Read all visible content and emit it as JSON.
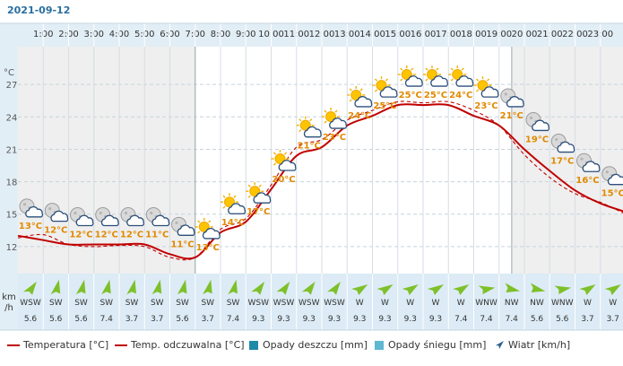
{
  "date": "2021-09-12",
  "colors": {
    "night_bg": "#efefef",
    "day_bg": "#ffffff",
    "header_bg": "#e2eef6",
    "wind_bg": "#dcebf5",
    "temp_line": "#c00000",
    "feels_line": "#c00000",
    "label_temp": "#e08a00",
    "wind_arrow": "#7ec02a",
    "rain": "#1f8aa8",
    "snow": "#5fb7d1",
    "wind_legend": "#2a5e8c"
  },
  "chart_data": {
    "type": "line",
    "title": "",
    "x": [
      "0:00",
      "1:00",
      "2:00",
      "3:00",
      "4:00",
      "5:00",
      "6:00",
      "7:00",
      "8:00",
      "9:00",
      "10:00",
      "11:00",
      "12:00",
      "13:00",
      "14:00",
      "15:00",
      "16:00",
      "17:00",
      "18:00",
      "19:00",
      "20:00",
      "21:00",
      "22:00",
      "23:00",
      "24:00"
    ],
    "x_tick_labels": [
      "1:00",
      "2:00",
      "3:00",
      "4:00",
      "5:00",
      "6:00",
      "7:00",
      "8:00",
      "9:00",
      "10:00",
      "11:00",
      "12:00",
      "13:00",
      "14:00",
      "15:00",
      "16:00",
      "17:00",
      "18:00",
      "19:00",
      "20:00",
      "21:00",
      "22:00",
      "23:00"
    ],
    "y_unit_label": "°C",
    "y_ticks": [
      12,
      15,
      18,
      21,
      24,
      27
    ],
    "ylim": [
      9.5,
      30.5
    ],
    "grid": true,
    "night_hours": [
      [
        0,
        7
      ],
      [
        19.5,
        24
      ]
    ],
    "series": [
      {
        "name": "Temperatura [°C]",
        "style": "solid",
        "values": [
          13.0,
          12.6,
          12.2,
          12.2,
          12.2,
          12.2,
          11.3,
          11.0,
          13.3,
          14.3,
          17.3,
          20.4,
          21.2,
          23.2,
          24.1,
          25.1,
          25.1,
          25.1,
          24.1,
          23.2,
          21.0,
          19.0,
          17.2,
          16.0,
          15.2
        ]
      },
      {
        "name": "Temp. odczuwalna [°C]",
        "style": "dashed",
        "values": [
          12.8,
          13.1,
          12.2,
          12.0,
          12.1,
          12.0,
          11.0,
          11.0,
          13.6,
          14.6,
          17.7,
          21.2,
          21.9,
          23.7,
          24.6,
          25.4,
          25.3,
          25.4,
          24.6,
          23.2,
          20.5,
          18.4,
          16.9,
          16.1,
          15.0
        ]
      }
    ],
    "point_labels": [
      {
        "hour": 0,
        "text": "13°C",
        "icon": "moon-cloud-icon"
      },
      {
        "hour": 1,
        "text": "12°C",
        "icon": "moon-cloud-icon"
      },
      {
        "hour": 2,
        "text": "12°C",
        "icon": "moon-cloud-icon"
      },
      {
        "hour": 3,
        "text": "12°C",
        "icon": "moon-cloud-icon"
      },
      {
        "hour": 4,
        "text": "12°C",
        "icon": "moon-cloud-icon"
      },
      {
        "hour": 5,
        "text": "11°C",
        "icon": "moon-cloud-icon"
      },
      {
        "hour": 6,
        "text": "11°C",
        "icon": "moon-cloud-icon"
      },
      {
        "hour": 7,
        "text": "13°C",
        "icon": "sun-cloud-icon"
      },
      {
        "hour": 8,
        "text": "14°C",
        "icon": "sun-cloud-icon"
      },
      {
        "hour": 9,
        "text": "17°C",
        "icon": "sun-cloud-icon"
      },
      {
        "hour": 10,
        "text": "20°C",
        "icon": "sun-cloud-icon"
      },
      {
        "hour": 11,
        "text": "21°C",
        "icon": "sun-cloud-icon"
      },
      {
        "hour": 12,
        "text": "23°C",
        "icon": "sun-cloud-icon"
      },
      {
        "hour": 13,
        "text": "24°C",
        "icon": "sun-cloud-icon"
      },
      {
        "hour": 14,
        "text": "25°C",
        "icon": "sun-cloud-icon"
      },
      {
        "hour": 15,
        "text": "25°C",
        "icon": "sun-cloud-icon"
      },
      {
        "hour": 16,
        "text": "25°C",
        "icon": "sun-cloud-icon"
      },
      {
        "hour": 17,
        "text": "24°C",
        "icon": "sun-cloud-icon"
      },
      {
        "hour": 18,
        "text": "23°C",
        "icon": "sun-cloud-icon"
      },
      {
        "hour": 19,
        "text": "21°C",
        "icon": "moon-cloud-icon"
      },
      {
        "hour": 20,
        "text": "19°C",
        "icon": "moon-cloud-icon"
      },
      {
        "hour": 21,
        "text": "17°C",
        "icon": "moon-cloud-icon"
      },
      {
        "hour": 22,
        "text": "16°C",
        "icon": "moon-cloud-icon"
      },
      {
        "hour": 23,
        "text": "15°C",
        "icon": "moon-cloud-icon"
      }
    ],
    "wind_unit_label": [
      "km",
      "/h"
    ],
    "wind": [
      {
        "dir": "WSW",
        "speed": "5.6",
        "deg": 248
      },
      {
        "dir": "SW",
        "speed": "5.6",
        "deg": 225
      },
      {
        "dir": "SW",
        "speed": "5.6",
        "deg": 225
      },
      {
        "dir": "SW",
        "speed": "7.4",
        "deg": 225
      },
      {
        "dir": "SW",
        "speed": "3.7",
        "deg": 225
      },
      {
        "dir": "SW",
        "speed": "3.7",
        "deg": 225
      },
      {
        "dir": "SW",
        "speed": "5.6",
        "deg": 225
      },
      {
        "dir": "SW",
        "speed": "3.7",
        "deg": 225
      },
      {
        "dir": "SW",
        "speed": "7.4",
        "deg": 225
      },
      {
        "dir": "WSW",
        "speed": "9.3",
        "deg": 248
      },
      {
        "dir": "WSW",
        "speed": "9.3",
        "deg": 248
      },
      {
        "dir": "WSW",
        "speed": "9.3",
        "deg": 248
      },
      {
        "dir": "WSW",
        "speed": "9.3",
        "deg": 248
      },
      {
        "dir": "W",
        "speed": "9.3",
        "deg": 270
      },
      {
        "dir": "W",
        "speed": "9.3",
        "deg": 270
      },
      {
        "dir": "W",
        "speed": "9.3",
        "deg": 270
      },
      {
        "dir": "W",
        "speed": "9.3",
        "deg": 270
      },
      {
        "dir": "W",
        "speed": "7.4",
        "deg": 270
      },
      {
        "dir": "WNW",
        "speed": "7.4",
        "deg": 292
      },
      {
        "dir": "NW",
        "speed": "7.4",
        "deg": 315
      },
      {
        "dir": "NW",
        "speed": "5.6",
        "deg": 315
      },
      {
        "dir": "WNW",
        "speed": "5.6",
        "deg": 292
      },
      {
        "dir": "W",
        "speed": "3.7",
        "deg": 270
      },
      {
        "dir": "W",
        "speed": "3.7",
        "deg": 270
      }
    ]
  },
  "legend": {
    "temp": "Temperatura [°C]",
    "feels": "Temp. odczuwalna [°C]",
    "rain": "Opady deszczu [mm]",
    "snow": "Opady śniegu [mm]",
    "wind": "Wiatr [km/h]"
  }
}
